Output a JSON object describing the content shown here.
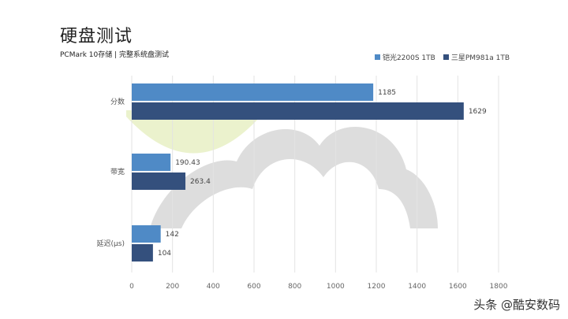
{
  "chart_data": {
    "type": "bar",
    "orientation": "horizontal",
    "title": "硬盘测试",
    "subtitle": "PCMark 10存储 | 完整系统盘测试",
    "categories": [
      "分数",
      "带宽",
      "延迟(μs)"
    ],
    "series": [
      {
        "name": "铠光2200S 1TB",
        "color": "#4f8ac6",
        "values": [
          1185,
          190.43,
          142
        ]
      },
      {
        "name": "三星PM981a 1TB",
        "color": "#34507d",
        "values": [
          1629,
          263.4,
          104
        ]
      }
    ],
    "data_labels": [
      [
        "1185",
        "1629"
      ],
      [
        "190.43",
        "263.4"
      ],
      [
        "142",
        "104"
      ]
    ],
    "xlim": [
      0,
      1800
    ],
    "xticks": [
      "0",
      "200",
      "400",
      "600",
      "800",
      "1000",
      "1200",
      "1400",
      "1600",
      "1800"
    ],
    "grid": true,
    "legend_position": "top-right"
  },
  "watermark": "头条 @酷安数码"
}
